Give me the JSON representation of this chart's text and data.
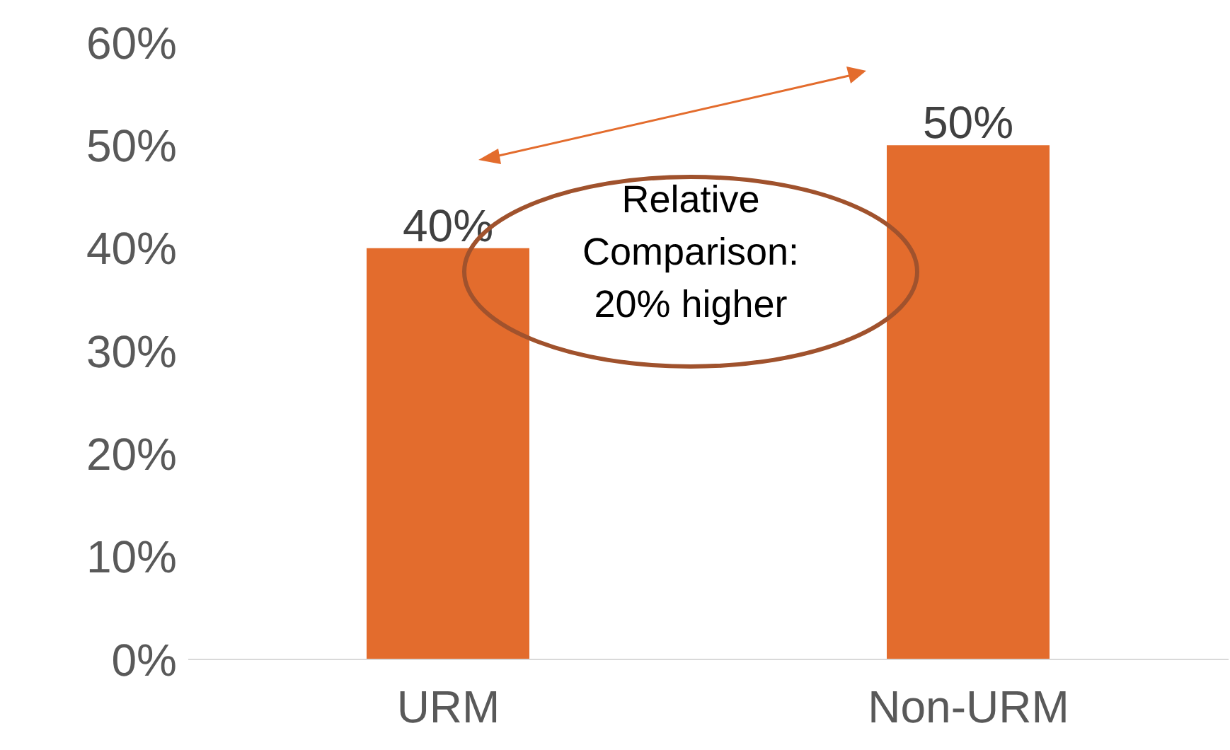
{
  "chart_data": {
    "type": "bar",
    "categories": [
      "URM",
      "Non-URM"
    ],
    "values": [
      40,
      50
    ],
    "color": "#e36c2d",
    "value_labels": [
      "40%",
      "50%"
    ],
    "ylim": [
      0,
      60
    ],
    "yticks": [
      {
        "value": 0,
        "label": "0%"
      },
      {
        "value": 10,
        "label": "10%"
      },
      {
        "value": 20,
        "label": "20%"
      },
      {
        "value": 30,
        "label": "30%"
      },
      {
        "value": 40,
        "label": "40%"
      },
      {
        "value": 50,
        "label": "50%"
      },
      {
        "value": 60,
        "label": "60%"
      }
    ],
    "grid": false,
    "annotations": [
      "Relative Comparison: 20% higher"
    ]
  }
}
